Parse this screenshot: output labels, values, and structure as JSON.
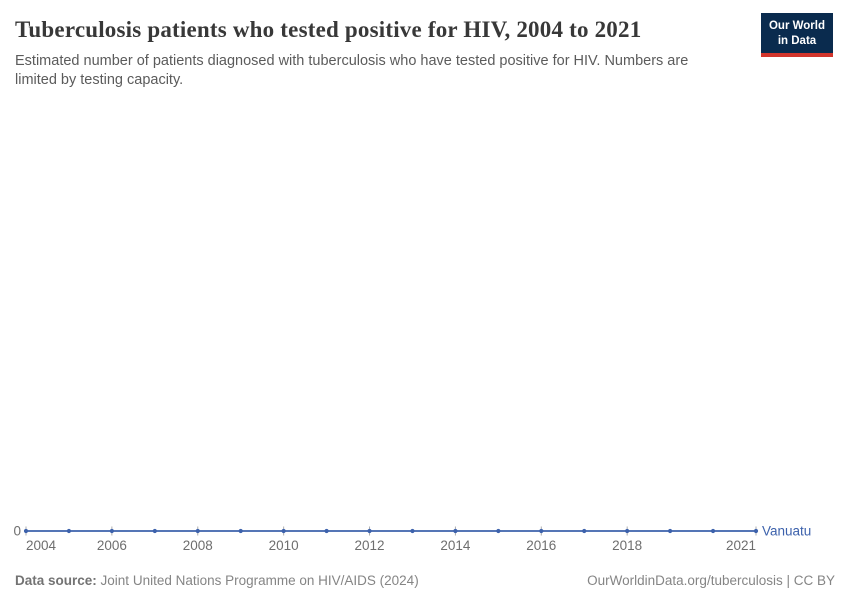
{
  "header": {
    "title": "Tuberculosis patients who tested positive for HIV, 2004 to 2021",
    "subtitle": "Estimated number of patients diagnosed with tuberculosis who have tested positive for HIV. Numbers are limited by testing capacity."
  },
  "logo": {
    "line1": "Our World",
    "line2": "in Data",
    "bg_color": "#0A2B4E",
    "stripe_color": "#D2352C"
  },
  "footer": {
    "source_label": "Data source:",
    "source_value": "Joint United Nations Programme on HIV/AIDS (2024)",
    "rights": "OurWorldinData.org/tuberculosis | CC BY"
  },
  "chart_data": {
    "type": "line",
    "title": "Tuberculosis patients who tested positive for HIV, 2004 to 2021",
    "subtitle": "Estimated number of patients diagnosed with tuberculosis who have tested positive for HIV. Numbers are limited by testing capacity.",
    "xlabel": "",
    "ylabel": "",
    "x": [
      2004,
      2005,
      2006,
      2007,
      2008,
      2009,
      2010,
      2011,
      2012,
      2013,
      2014,
      2015,
      2016,
      2017,
      2018,
      2019,
      2020,
      2021
    ],
    "series": [
      {
        "name": "Vanuatu",
        "color": "#3D62AC",
        "values": [
          0,
          0,
          0,
          0,
          0,
          0,
          0,
          0,
          0,
          0,
          0,
          0,
          0,
          0,
          0,
          0,
          0,
          0
        ]
      }
    ],
    "x_tick_labels": [
      "2004",
      "2006",
      "2008",
      "2010",
      "2012",
      "2014",
      "2016",
      "2018",
      "2021"
    ],
    "y_tick_labels": [
      "0"
    ],
    "ylim": [
      0,
      null
    ],
    "grid": "off",
    "legend_position": "end-of-line-label",
    "axis_color": "#ADADAD",
    "tick_label_color": "#6E6E6E",
    "point_marker": "circle"
  }
}
